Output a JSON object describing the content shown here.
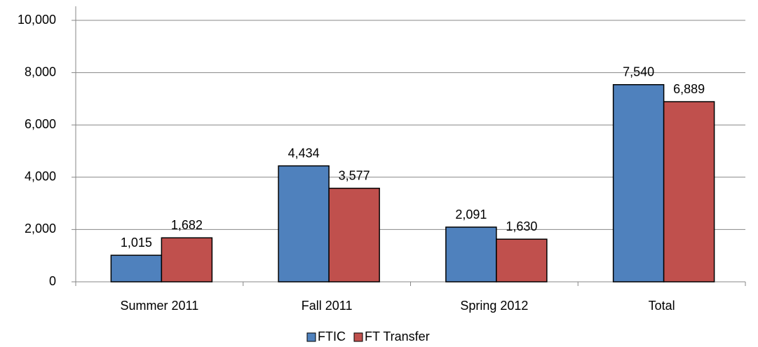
{
  "chart_data": {
    "type": "bar",
    "categories": [
      "Summer 2011",
      "Fall 2011",
      "Spring 2012",
      "Total"
    ],
    "series": [
      {
        "name": "FTIC",
        "color": "#4f81bd",
        "values": [
          1015,
          4434,
          2091,
          7540
        ],
        "value_labels": [
          "1,015",
          "4,434",
          "2,091",
          "7,540"
        ]
      },
      {
        "name": "FT Transfer",
        "color": "#c0504d",
        "values": [
          1682,
          3577,
          1630,
          6889
        ],
        "value_labels": [
          "1,682",
          "3,577",
          "1,630",
          "6,889"
        ]
      }
    ],
    "ylim": [
      0,
      10000
    ],
    "yticks": [
      0,
      {
        "value": 2000,
        "label": "2,000"
      },
      {
        "value": 4000,
        "label": "4,000"
      },
      {
        "value": 6000,
        "label": "6,000"
      },
      {
        "value": 8000,
        "label": "8,000"
      },
      {
        "value": 10000,
        "label": "10,000"
      }
    ],
    "grid": true,
    "legend": "bottom"
  }
}
